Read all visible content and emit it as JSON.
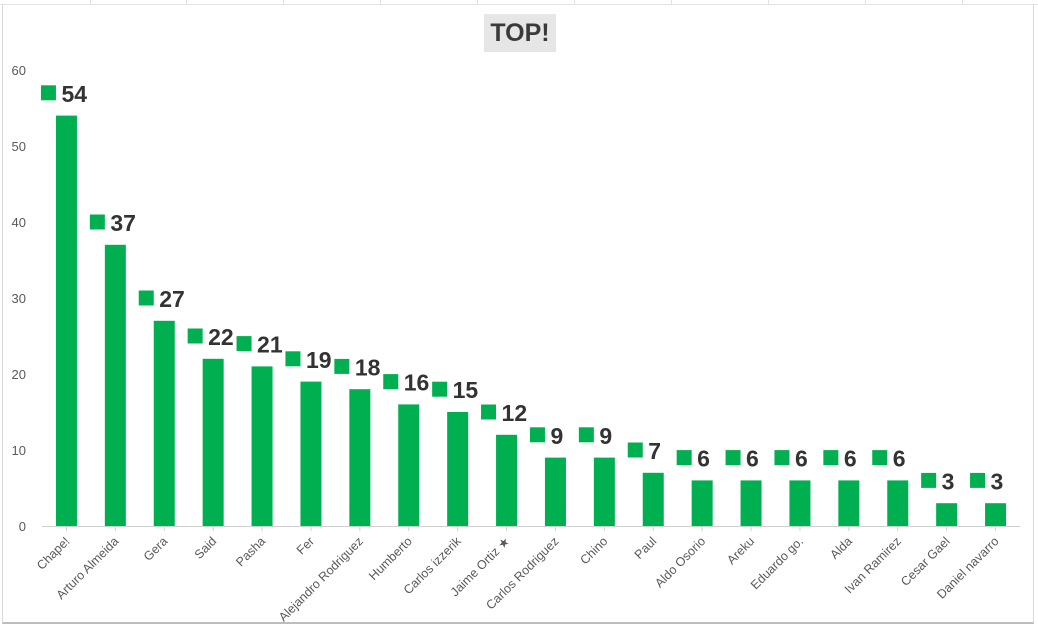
{
  "chart_data": {
    "type": "bar",
    "title": "TOP!",
    "xlabel": "",
    "ylabel": "",
    "ylim": [
      0,
      60
    ],
    "yticks": [
      0,
      10,
      20,
      30,
      40,
      50,
      60
    ],
    "grid": false,
    "legend": "none",
    "bar_color": "#00b050",
    "marker_color": "#00b050",
    "categories": [
      "Chape!",
      "Arturo Almeida",
      "Gera",
      "Said",
      "Pasha",
      "Fer",
      "Alejandro Rodriguez",
      "Humberto",
      "Carlos izzerik",
      "Jaime Ortiz ★",
      "Carlos Rodriguez",
      "Chino",
      "Paul",
      "Aldo Osorio",
      "Areku",
      "Eduardo go.",
      "Alda",
      "Ivan Ramirez",
      "Cesar Gael",
      "Daniel navarro"
    ],
    "values": [
      54,
      37,
      27,
      22,
      21,
      19,
      18,
      16,
      15,
      12,
      9,
      9,
      7,
      6,
      6,
      6,
      6,
      6,
      3,
      3
    ],
    "marker_values": [
      57,
      40,
      30,
      25,
      24,
      22,
      21,
      19,
      18,
      15,
      12,
      12,
      10,
      9,
      9,
      9,
      9,
      9,
      6,
      6
    ]
  }
}
